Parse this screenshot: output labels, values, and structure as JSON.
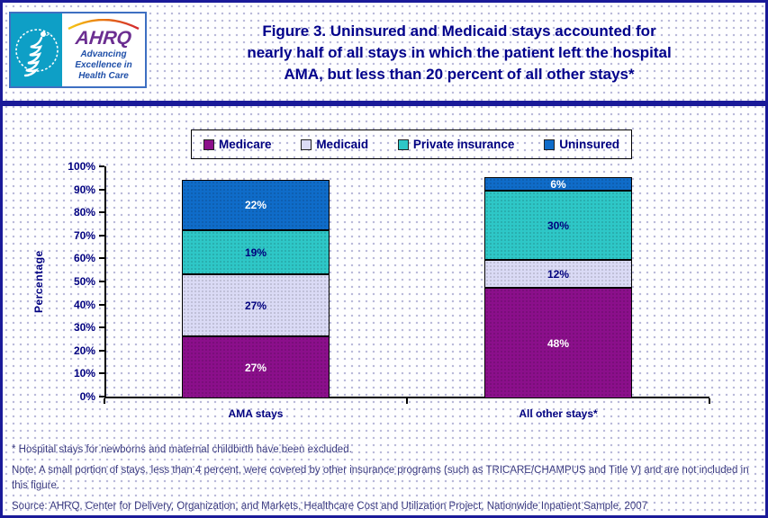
{
  "header": {
    "title_lines": [
      "Figure 3. Uninsured and Medicaid stays accounted for",
      "nearly half of all stays in which the patient left the hospital",
      "AMA, but less than 20 percent of all other stays*"
    ],
    "logo": {
      "wordmark": "AHRQ",
      "tagline": "Advancing Excellence in Health Care"
    }
  },
  "chart_data": {
    "type": "bar",
    "stacked": true,
    "categories": [
      "AMA stays",
      "All other stays*"
    ],
    "series": [
      {
        "name": "Medicare",
        "color": "#8B0F8B",
        "label_color": "#FFFFFF",
        "values": [
          27,
          48
        ]
      },
      {
        "name": "Medicaid",
        "color": "#DADAF5",
        "label_color": "#00007E",
        "values": [
          27,
          12
        ]
      },
      {
        "name": "Private insurance",
        "color": "#2EC7C7",
        "label_color": "#00007E",
        "values": [
          19,
          30
        ]
      },
      {
        "name": "Uninsured",
        "color": "#0F6CC9",
        "label_color": "#FFFFFF",
        "values": [
          22,
          6
        ]
      }
    ],
    "ylabel": "Percentage",
    "ylim": [
      0,
      100
    ],
    "ytick_step": 10,
    "tick_suffix": "%",
    "value_suffix": "%",
    "legend_position": "top",
    "grid": false
  },
  "footnotes": {
    "asterisk": "* Hospital stays for newborns and maternal childbirth have been excluded.",
    "note": "Note: A small portion of stays, less than 4 percent, were covered by other insurance programs (such as TRICARE/CHAMPUS and Title V) and are not included in this figure.",
    "source": "Source: AHRQ, Center for Delivery, Organization, and Markets, Healthcare Cost and Utilization Project, Nationwide Inpatient Sample, 2007"
  },
  "colors": {
    "page_border": "#1A1A99",
    "title_text": "#00008B",
    "axis_text": "#000080",
    "footnote_text": "#3A3A80",
    "logo_panel": "#0E9FC6",
    "logo_wordmark": "#6B2E91",
    "logo_tagline": "#1F4FA8"
  }
}
